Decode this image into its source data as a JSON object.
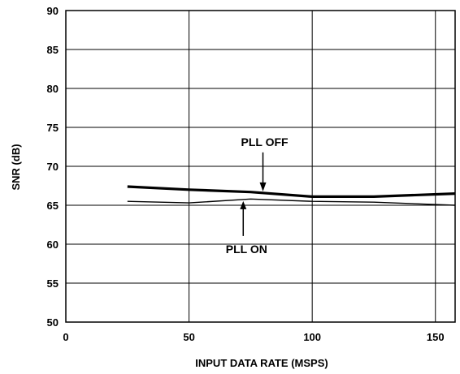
{
  "chart_data": {
    "type": "line",
    "title": "",
    "xlabel": "INPUT DATA RATE (MSPS)",
    "ylabel": "SNR (dB)",
    "xlim": [
      0,
      158
    ],
    "ylim": [
      50,
      90
    ],
    "xticks": [
      0,
      50,
      100,
      150
    ],
    "yticks": [
      50,
      55,
      60,
      65,
      70,
      75,
      80,
      85,
      90
    ],
    "grid": true,
    "legend": "none",
    "series": [
      {
        "name": "PLL OFF",
        "style": "thick",
        "x": [
          25,
          50,
          75,
          100,
          125,
          158
        ],
        "y": [
          67.4,
          67.0,
          66.7,
          66.1,
          66.1,
          66.5
        ]
      },
      {
        "name": "PLL ON",
        "style": "thin",
        "x": [
          25,
          50,
          75,
          100,
          125,
          158
        ],
        "y": [
          65.5,
          65.3,
          65.8,
          65.5,
          65.4,
          65.0
        ]
      }
    ],
    "annotations": [
      {
        "text": "PLL OFF",
        "series": "PLL OFF",
        "arrow_to_x": 80
      },
      {
        "text": "PLL ON",
        "series": "PLL ON",
        "arrow_to_x": 72
      }
    ]
  }
}
